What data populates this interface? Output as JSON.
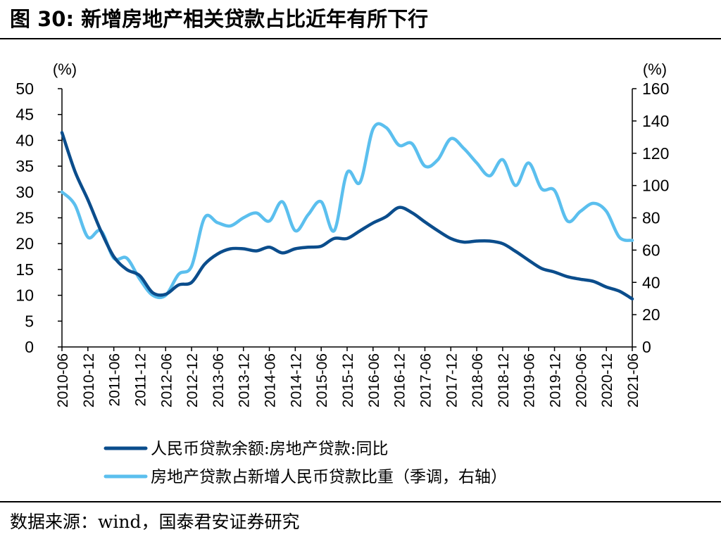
{
  "figure": {
    "title": "图  30:  新增房地产相关贷款占比近年有所下行",
    "source": "数据来源：wind，国泰君安证券研究"
  },
  "colors": {
    "series1": "#0b4d8c",
    "series2": "#5bbfee",
    "axis": "#000000"
  },
  "chart_data": {
    "type": "line",
    "title": "",
    "xlabel": "",
    "ylabel_left": "(%)",
    "ylabel_right": "(%)",
    "ylim_left": [
      0,
      50
    ],
    "ylim_right": [
      0,
      160
    ],
    "yticks_left": [
      0,
      5,
      10,
      15,
      20,
      25,
      30,
      35,
      40,
      45,
      50
    ],
    "yticks_right": [
      0,
      20,
      40,
      60,
      80,
      100,
      120,
      140,
      160
    ],
    "xticks": [
      "2010-06",
      "2010-12",
      "2011-06",
      "2011-12",
      "2012-06",
      "2012-12",
      "2013-06",
      "2013-12",
      "2014-06",
      "2014-12",
      "2015-06",
      "2015-12",
      "2016-06",
      "2016-12",
      "2017-06",
      "2017-12",
      "2018-06",
      "2018-12",
      "2019-06",
      "2019-12",
      "2020-06",
      "2020-12",
      "2021-06"
    ],
    "grid": false,
    "legend_position": "bottom",
    "series": [
      {
        "name": "人民币贷款余额:房地产贷款:同比",
        "axis": "left",
        "x": [
          "2010-06",
          "2010-09",
          "2010-12",
          "2011-03",
          "2011-06",
          "2011-09",
          "2011-12",
          "2012-03",
          "2012-06",
          "2012-09",
          "2012-12",
          "2013-03",
          "2013-06",
          "2013-09",
          "2013-12",
          "2014-03",
          "2014-06",
          "2014-09",
          "2014-12",
          "2015-03",
          "2015-06",
          "2015-09",
          "2015-12",
          "2016-03",
          "2016-06",
          "2016-09",
          "2016-12",
          "2017-03",
          "2017-06",
          "2017-09",
          "2017-12",
          "2018-03",
          "2018-06",
          "2018-09",
          "2018-12",
          "2019-03",
          "2019-06",
          "2019-09",
          "2019-12",
          "2020-03",
          "2020-06",
          "2020-09",
          "2020-12",
          "2021-03",
          "2021-06"
        ],
        "values": [
          41.5,
          34.0,
          28.5,
          22.5,
          17.5,
          15.0,
          13.8,
          10.5,
          10.2,
          12.0,
          12.5,
          16.0,
          18.0,
          19.0,
          19.0,
          18.6,
          19.3,
          18.2,
          19.0,
          19.3,
          19.5,
          21.0,
          21.0,
          22.5,
          24.0,
          25.2,
          27.0,
          26.0,
          24.2,
          22.5,
          21.0,
          20.3,
          20.5,
          20.5,
          20.0,
          18.5,
          16.8,
          15.2,
          14.5,
          13.6,
          13.1,
          12.7,
          11.6,
          10.8,
          9.3
        ]
      },
      {
        "name": "房地产贷款占新增人民币贷款比重（季调，右轴）",
        "axis": "right",
        "x": [
          "2010-06",
          "2010-09",
          "2010-12",
          "2011-03",
          "2011-06",
          "2011-09",
          "2011-12",
          "2012-03",
          "2012-06",
          "2012-09",
          "2012-12",
          "2013-03",
          "2013-06",
          "2013-09",
          "2013-12",
          "2014-03",
          "2014-06",
          "2014-09",
          "2014-12",
          "2015-03",
          "2015-06",
          "2015-09",
          "2015-12",
          "2016-03",
          "2016-06",
          "2016-09",
          "2016-12",
          "2017-03",
          "2017-06",
          "2017-09",
          "2017-12",
          "2018-03",
          "2018-06",
          "2018-09",
          "2018-12",
          "2019-03",
          "2019-06",
          "2019-09",
          "2019-12",
          "2020-03",
          "2020-06",
          "2020-09",
          "2020-12",
          "2021-03",
          "2021-06"
        ],
        "values": [
          96.0,
          88.0,
          68.0,
          72.0,
          55.0,
          55.0,
          42.0,
          32.0,
          32.0,
          45.0,
          50.0,
          80.0,
          77.0,
          75.0,
          80.0,
          83.0,
          78.0,
          90.0,
          72.0,
          82.0,
          90.0,
          72.0,
          108.0,
          102.0,
          135.0,
          136.0,
          125.0,
          126.0,
          112.0,
          116.0,
          129.0,
          123.0,
          114.0,
          106.0,
          116.0,
          100.0,
          114.0,
          98.0,
          97.0,
          78.0,
          84.0,
          89.0,
          84.0,
          68.0,
          66.0
        ]
      }
    ]
  }
}
